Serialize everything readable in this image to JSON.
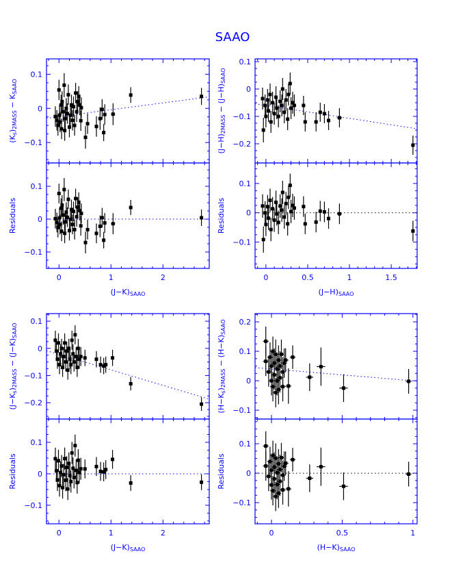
{
  "chart_data": {
    "title": "SAAO",
    "type": "scatter",
    "panels": [
      {
        "id": "ks",
        "xlabel": [
          {
            "t": "(J−K)"
          },
          {
            "t": "SAAO",
            "sub": true
          }
        ],
        "ylabel": [
          {
            "t": "(K"
          },
          {
            "t": "s",
            "sub": true
          },
          {
            "t": ")"
          },
          {
            "t": "2MASS",
            "sub": true
          },
          {
            "t": " − K"
          },
          {
            "t": "SAAO",
            "sub": true
          }
        ],
        "residual_label": "Residuals",
        "xlim": [
          -0.24,
          2.89
        ],
        "xticks": [
          0,
          1,
          2
        ],
        "xminor": 0.2,
        "ylim": [
          -0.16,
          0.145
        ],
        "yticks": [
          -0.1,
          0,
          0.1
        ],
        "yminor": 0.025,
        "rlim": [
          -0.15,
          0.171
        ],
        "rticks": [
          -0.1,
          0,
          0.1
        ],
        "fit": {
          "intercept": -0.024,
          "slope": 0.02
        },
        "points": [
          [
            -0.07,
            -0.024,
            0.02,
            0.03
          ],
          [
            -0.04,
            -0.035,
            0.02,
            0.03
          ],
          [
            -0.02,
            -0.05,
            0.02,
            0.03
          ],
          [
            0.0,
            0.054,
            0.02,
            0.03
          ],
          [
            0.01,
            -0.02,
            0.02,
            0.03
          ],
          [
            0.02,
            -0.04,
            0.02,
            0.03
          ],
          [
            0.04,
            0.01,
            0.02,
            0.03
          ],
          [
            0.05,
            -0.06,
            0.02,
            0.03
          ],
          [
            0.06,
            0.02,
            0.02,
            0.03
          ],
          [
            0.08,
            -0.01,
            0.02,
            0.03
          ],
          [
            0.1,
            0.068,
            0.02,
            0.035
          ],
          [
            0.11,
            -0.065,
            0.02,
            0.03
          ],
          [
            0.12,
            -0.03,
            0.02,
            0.03
          ],
          [
            0.14,
            0.0,
            0.02,
            0.03
          ],
          [
            0.16,
            -0.015,
            0.02,
            0.03
          ],
          [
            0.18,
            0.04,
            0.02,
            0.03
          ],
          [
            0.2,
            -0.055,
            0.02,
            0.03
          ],
          [
            0.22,
            -0.02,
            0.02,
            0.03
          ],
          [
            0.24,
            0.01,
            0.02,
            0.03
          ],
          [
            0.26,
            -0.035,
            0.02,
            0.03
          ],
          [
            0.28,
            0.005,
            0.02,
            0.03
          ],
          [
            0.3,
            -0.05,
            0.02,
            0.03
          ],
          [
            0.32,
            0.045,
            0.02,
            0.03
          ],
          [
            0.34,
            -0.01,
            0.02,
            0.03
          ],
          [
            0.36,
            0.02,
            0.02,
            0.03
          ],
          [
            0.38,
            0.035,
            0.02,
            0.03
          ],
          [
            0.4,
            0.01,
            0.02,
            0.03
          ],
          [
            0.42,
            -0.036,
            0.02,
            0.03
          ],
          [
            0.43,
            0.002,
            0.02,
            0.03
          ],
          [
            0.51,
            -0.085,
            0.02,
            0.033
          ],
          [
            0.55,
            -0.045,
            0.02,
            0.03
          ],
          [
            0.72,
            -0.053,
            0.02,
            0.03
          ],
          [
            0.79,
            -0.03,
            0.02,
            0.033
          ],
          [
            0.83,
            -0.003,
            0.02,
            0.03
          ],
          [
            0.86,
            -0.071,
            0.02,
            0.025
          ],
          [
            0.88,
            -0.018,
            0.02,
            0.03
          ],
          [
            1.04,
            -0.017,
            0.04,
            0.032
          ],
          [
            1.38,
            0.039,
            0.02,
            0.023
          ],
          [
            2.74,
            0.035,
            0.02,
            0.025
          ]
        ]
      },
      {
        "id": "jh",
        "xlabel": [
          {
            "t": "(J−H)"
          },
          {
            "t": "SAAO",
            "sub": true
          }
        ],
        "ylabel": [
          {
            "t": "(J−H)"
          },
          {
            "t": "2MASS",
            "sub": true
          },
          {
            "t": " − (J−H)"
          },
          {
            "t": "SAAO",
            "sub": true
          }
        ],
        "residual_label": "Residuals",
        "xlim": [
          -0.13,
          1.81
        ],
        "xticks": [
          0,
          0.5,
          1,
          1.5
        ],
        "xminor": 0.1,
        "ylim": [
          -0.27,
          0.11
        ],
        "yticks": [
          -0.2,
          -0.1,
          0,
          0.1
        ],
        "yminor": 0.025,
        "rlim": [
          -0.19,
          0.17
        ],
        "rticks": [
          -0.1,
          0,
          0.1
        ],
        "fit": {
          "intercept": -0.06,
          "slope": -0.047
        },
        "points": [
          [
            -0.04,
            -0.035,
            0.02,
            0.04
          ],
          [
            -0.03,
            -0.15,
            0.02,
            0.045
          ],
          [
            -0.01,
            -0.06,
            0.02,
            0.04
          ],
          [
            0.0,
            -0.1,
            0.02,
            0.04
          ],
          [
            0.02,
            -0.04,
            0.02,
            0.04
          ],
          [
            0.03,
            -0.08,
            0.02,
            0.04
          ],
          [
            0.05,
            -0.02,
            0.02,
            0.04
          ],
          [
            0.06,
            -0.12,
            0.02,
            0.04
          ],
          [
            0.08,
            -0.05,
            0.02,
            0.04
          ],
          [
            0.1,
            -0.09,
            0.02,
            0.04
          ],
          [
            0.12,
            -0.03,
            0.02,
            0.04
          ],
          [
            0.13,
            -0.07,
            0.02,
            0.04
          ],
          [
            0.15,
            -0.1,
            0.02,
            0.04
          ],
          [
            0.17,
            -0.045,
            0.02,
            0.04
          ],
          [
            0.19,
            -0.06,
            0.02,
            0.04
          ],
          [
            0.2,
            0.0,
            0.02,
            0.04
          ],
          [
            0.22,
            -0.085,
            0.02,
            0.04
          ],
          [
            0.24,
            -0.04,
            0.02,
            0.04
          ],
          [
            0.26,
            -0.11,
            0.02,
            0.04
          ],
          [
            0.27,
            -0.02,
            0.02,
            0.04
          ],
          [
            0.29,
            0.02,
            0.02,
            0.04
          ],
          [
            0.3,
            -0.07,
            0.02,
            0.04
          ],
          [
            0.32,
            -0.05,
            0.02,
            0.04
          ],
          [
            0.34,
            -0.06,
            0.02,
            0.04
          ],
          [
            0.45,
            -0.06,
            0.02,
            0.035
          ],
          [
            0.47,
            -0.12,
            0.02,
            0.035
          ],
          [
            0.6,
            -0.12,
            0.02,
            0.035
          ],
          [
            0.65,
            -0.085,
            0.02,
            0.035
          ],
          [
            0.7,
            -0.09,
            0.02,
            0.035
          ],
          [
            0.75,
            -0.115,
            0.02,
            0.035
          ],
          [
            0.88,
            -0.105,
            0.03,
            0.035
          ],
          [
            1.76,
            -0.205,
            0.02,
            0.035
          ]
        ]
      },
      {
        "id": "jk",
        "xlabel": [
          {
            "t": "(J−K)"
          },
          {
            "t": "SAAO",
            "sub": true
          }
        ],
        "ylabel": [
          {
            "t": "(J−K"
          },
          {
            "t": "s",
            "sub": true
          },
          {
            "t": ")"
          },
          {
            "t": "2MASS",
            "sub": true
          },
          {
            "t": " − (J−K)"
          },
          {
            "t": "SAAO",
            "sub": true
          }
        ],
        "residual_label": "Residuals",
        "xlim": [
          -0.24,
          2.89
        ],
        "xticks": [
          0,
          1,
          2
        ],
        "xminor": 0.2,
        "ylim": [
          -0.26,
          0.128
        ],
        "yticks": [
          -0.2,
          -0.1,
          0,
          0.1
        ],
        "yminor": 0.025,
        "rlim": [
          -0.159,
          0.174
        ],
        "rticks": [
          -0.1,
          0,
          0.1
        ],
        "fit": {
          "intercept": -0.022,
          "slope": -0.057
        },
        "points": [
          [
            -0.07,
            0.03,
            0.02,
            0.035
          ],
          [
            -0.05,
            -0.01,
            0.02,
            0.035
          ],
          [
            -0.03,
            -0.04,
            0.02,
            0.035
          ],
          [
            -0.01,
            0.02,
            0.02,
            0.035
          ],
          [
            0.01,
            -0.06,
            0.02,
            0.035
          ],
          [
            0.03,
            -0.02,
            0.02,
            0.035
          ],
          [
            0.05,
            0.0,
            0.02,
            0.035
          ],
          [
            0.07,
            -0.07,
            0.02,
            0.035
          ],
          [
            0.09,
            -0.03,
            0.02,
            0.035
          ],
          [
            0.11,
            0.02,
            0.02,
            0.035
          ],
          [
            0.13,
            -0.05,
            0.02,
            0.035
          ],
          [
            0.15,
            -0.01,
            0.02,
            0.035
          ],
          [
            0.17,
            -0.08,
            0.02,
            0.035
          ],
          [
            0.19,
            0.0,
            0.02,
            0.035
          ],
          [
            0.21,
            -0.04,
            0.02,
            0.035
          ],
          [
            0.23,
            -0.06,
            0.02,
            0.035
          ],
          [
            0.25,
            0.03,
            0.02,
            0.035
          ],
          [
            0.27,
            -0.02,
            0.02,
            0.035
          ],
          [
            0.29,
            -0.05,
            0.02,
            0.035
          ],
          [
            0.31,
            0.05,
            0.02,
            0.035
          ],
          [
            0.33,
            -0.03,
            0.02,
            0.035
          ],
          [
            0.35,
            -0.07,
            0.02,
            0.035
          ],
          [
            0.37,
            0.0,
            0.02,
            0.035
          ],
          [
            0.39,
            -0.04,
            0.02,
            0.035
          ],
          [
            0.42,
            -0.03,
            0.02,
            0.035
          ],
          [
            0.5,
            -0.035,
            0.02,
            0.03
          ],
          [
            0.72,
            -0.04,
            0.02,
            0.03
          ],
          [
            0.8,
            -0.06,
            0.02,
            0.03
          ],
          [
            0.86,
            -0.065,
            0.02,
            0.03
          ],
          [
            0.9,
            -0.06,
            0.02,
            0.03
          ],
          [
            1.03,
            -0.035,
            0.03,
            0.03
          ],
          [
            1.38,
            -0.13,
            0.02,
            0.025
          ],
          [
            2.74,
            -0.205,
            0.02,
            0.025
          ]
        ]
      },
      {
        "id": "hk",
        "xlabel": [
          {
            "t": "(H−K)"
          },
          {
            "t": "SAAO",
            "sub": true
          }
        ],
        "ylabel": [
          {
            "t": "(H−K"
          },
          {
            "t": "s",
            "sub": true
          },
          {
            "t": ")"
          },
          {
            "t": "2MASS",
            "sub": true
          },
          {
            "t": " − (H−K)"
          },
          {
            "t": "SAAO",
            "sub": true
          }
        ],
        "residual_label": "Residuals",
        "xlim": [
          -0.116,
          1.03
        ],
        "xticks": [
          0,
          0.5,
          1
        ],
        "xminor": 0.1,
        "ylim": [
          -0.13,
          0.228
        ],
        "yticks": [
          -0.1,
          0,
          0.1,
          0.2
        ],
        "yminor": 0.025,
        "rlim": [
          -0.172,
          0.184
        ],
        "rticks": [
          -0.1,
          0,
          0.1
        ],
        "fit": {
          "intercept": 0.04,
          "slope": -0.04
        },
        "points": [
          [
            -0.04,
            0.134,
            0.02,
            0.05
          ],
          [
            -0.04,
            0.066,
            0.02,
            0.05
          ],
          [
            -0.02,
            0.03,
            0.02,
            0.05
          ],
          [
            -0.01,
            0.08,
            0.02,
            0.05
          ],
          [
            0.0,
            0.0,
            0.02,
            0.05
          ],
          [
            0.0,
            0.05,
            0.02,
            0.05
          ],
          [
            0.01,
            0.1,
            0.02,
            0.05
          ],
          [
            0.01,
            -0.02,
            0.02,
            0.05
          ],
          [
            0.02,
            0.06,
            0.02,
            0.05
          ],
          [
            0.02,
            0.02,
            0.02,
            0.05
          ],
          [
            0.03,
            0.09,
            0.02,
            0.05
          ],
          [
            0.03,
            -0.04,
            0.02,
            0.05
          ],
          [
            0.04,
            0.04,
            0.02,
            0.05
          ],
          [
            0.04,
            0.0,
            0.02,
            0.05
          ],
          [
            0.05,
            0.07,
            0.02,
            0.05
          ],
          [
            0.05,
            -0.03,
            0.02,
            0.05
          ],
          [
            0.06,
            0.05,
            0.02,
            0.05
          ],
          [
            0.06,
            0.01,
            0.02,
            0.05
          ],
          [
            0.07,
            0.09,
            0.02,
            0.05
          ],
          [
            0.08,
            0.03,
            0.02,
            0.05
          ],
          [
            0.08,
            -0.02,
            0.02,
            0.05
          ],
          [
            0.09,
            0.06,
            0.02,
            0.05
          ],
          [
            0.1,
            0.07,
            0.02,
            0.04
          ],
          [
            0.12,
            -0.018,
            0.02,
            0.06
          ],
          [
            0.15,
            0.08,
            0.02,
            0.04
          ],
          [
            0.27,
            0.012,
            0.025,
            0.047
          ],
          [
            0.35,
            0.048,
            0.03,
            0.065
          ],
          [
            0.51,
            -0.025,
            0.03,
            0.047
          ],
          [
            0.97,
            -0.002,
            0.02,
            0.042
          ]
        ]
      }
    ]
  }
}
